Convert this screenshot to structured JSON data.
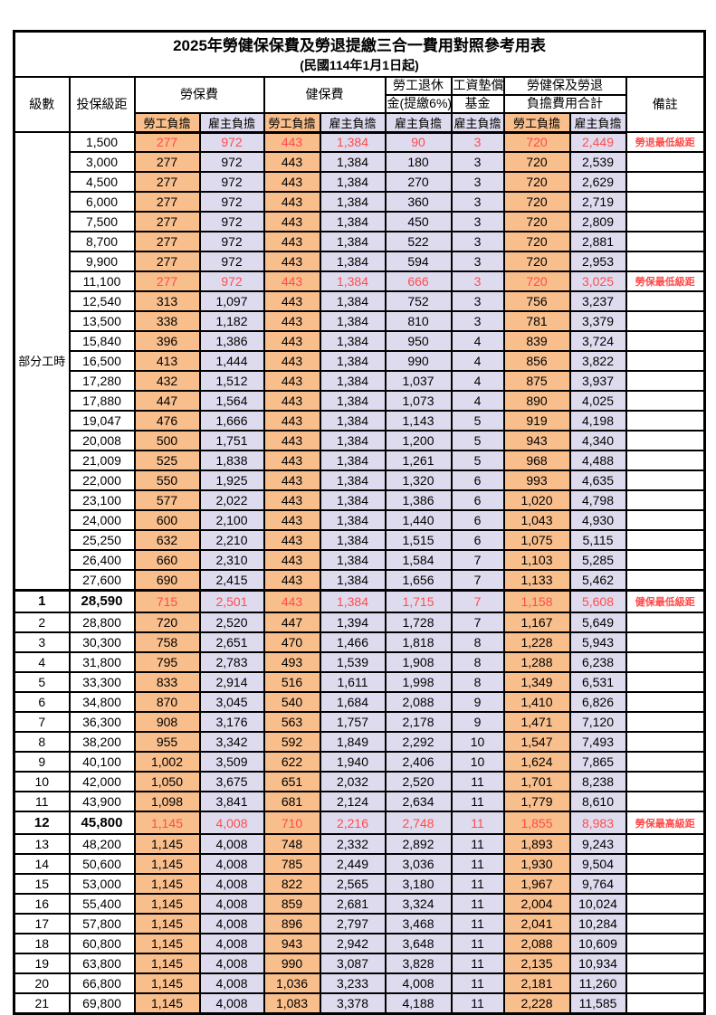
{
  "title": "2025年勞健保保費及勞退提繳三合一費用對照參考用表",
  "subtitle": "(民國114年1月1日起)",
  "header": {
    "level": "級數",
    "bracket": "投保級距",
    "labor_insurance": "勞保費",
    "health_insurance": "健保費",
    "pension_line1": "勞工退休",
    "pension_line2": "金(提繳6%)",
    "wage_fund_line1": "工資墊償",
    "wage_fund_line2": "基金",
    "total_line1": "勞健保及勞退",
    "total_line2": "負擔費用合計",
    "employee_share": "勞工負擔",
    "employer_share": "雇主負擔",
    "note": "備註"
  },
  "part_time_label": "部分工時",
  "part_time_span": 23,
  "colors": {
    "employee_column_bg": "#F8BE8C",
    "employer_column_bg": "#DFDBEE",
    "highlight_red": "#FF4C4C",
    "border": "#000000"
  },
  "rows": [
    {
      "level": "",
      "bracket": "1,500",
      "values": [
        "277",
        "972",
        "443",
        "1,384",
        "90",
        "3",
        "720",
        "2,449"
      ],
      "note": "勞退最低級距",
      "red": true,
      "bold": false,
      "section_start": false
    },
    {
      "level": "",
      "bracket": "3,000",
      "values": [
        "277",
        "972",
        "443",
        "1,384",
        "180",
        "3",
        "720",
        "2,539"
      ],
      "note": "",
      "red": false,
      "bold": false,
      "section_start": false
    },
    {
      "level": "",
      "bracket": "4,500",
      "values": [
        "277",
        "972",
        "443",
        "1,384",
        "270",
        "3",
        "720",
        "2,629"
      ],
      "note": "",
      "red": false,
      "bold": false,
      "section_start": false
    },
    {
      "level": "",
      "bracket": "6,000",
      "values": [
        "277",
        "972",
        "443",
        "1,384",
        "360",
        "3",
        "720",
        "2,719"
      ],
      "note": "",
      "red": false,
      "bold": false,
      "section_start": false
    },
    {
      "level": "",
      "bracket": "7,500",
      "values": [
        "277",
        "972",
        "443",
        "1,384",
        "450",
        "3",
        "720",
        "2,809"
      ],
      "note": "",
      "red": false,
      "bold": false,
      "section_start": false
    },
    {
      "level": "",
      "bracket": "8,700",
      "values": [
        "277",
        "972",
        "443",
        "1,384",
        "522",
        "3",
        "720",
        "2,881"
      ],
      "note": "",
      "red": false,
      "bold": false,
      "section_start": false
    },
    {
      "level": "",
      "bracket": "9,900",
      "values": [
        "277",
        "972",
        "443",
        "1,384",
        "594",
        "3",
        "720",
        "2,953"
      ],
      "note": "",
      "red": false,
      "bold": false,
      "section_start": false
    },
    {
      "level": "",
      "bracket": "11,100",
      "values": [
        "277",
        "972",
        "443",
        "1,384",
        "666",
        "3",
        "720",
        "3,025"
      ],
      "note": "勞保最低級距",
      "red": true,
      "bold": false,
      "section_start": false
    },
    {
      "level": "",
      "bracket": "12,540",
      "values": [
        "313",
        "1,097",
        "443",
        "1,384",
        "752",
        "3",
        "756",
        "3,237"
      ],
      "note": "",
      "red": false,
      "bold": false,
      "section_start": false
    },
    {
      "level": "",
      "bracket": "13,500",
      "values": [
        "338",
        "1,182",
        "443",
        "1,384",
        "810",
        "3",
        "781",
        "3,379"
      ],
      "note": "",
      "red": false,
      "bold": false,
      "section_start": false
    },
    {
      "level": "",
      "bracket": "15,840",
      "values": [
        "396",
        "1,386",
        "443",
        "1,384",
        "950",
        "4",
        "839",
        "3,724"
      ],
      "note": "",
      "red": false,
      "bold": false,
      "section_start": false
    },
    {
      "level": "",
      "bracket": "16,500",
      "values": [
        "413",
        "1,444",
        "443",
        "1,384",
        "990",
        "4",
        "856",
        "3,822"
      ],
      "note": "",
      "red": false,
      "bold": false,
      "section_start": false
    },
    {
      "level": "",
      "bracket": "17,280",
      "values": [
        "432",
        "1,512",
        "443",
        "1,384",
        "1,037",
        "4",
        "875",
        "3,937"
      ],
      "note": "",
      "red": false,
      "bold": false,
      "section_start": false
    },
    {
      "level": "",
      "bracket": "17,880",
      "values": [
        "447",
        "1,564",
        "443",
        "1,384",
        "1,073",
        "4",
        "890",
        "4,025"
      ],
      "note": "",
      "red": false,
      "bold": false,
      "section_start": false
    },
    {
      "level": "",
      "bracket": "19,047",
      "values": [
        "476",
        "1,666",
        "443",
        "1,384",
        "1,143",
        "5",
        "919",
        "4,198"
      ],
      "note": "",
      "red": false,
      "bold": false,
      "section_start": false
    },
    {
      "level": "",
      "bracket": "20,008",
      "values": [
        "500",
        "1,751",
        "443",
        "1,384",
        "1,200",
        "5",
        "943",
        "4,340"
      ],
      "note": "",
      "red": false,
      "bold": false,
      "section_start": false
    },
    {
      "level": "",
      "bracket": "21,009",
      "values": [
        "525",
        "1,838",
        "443",
        "1,384",
        "1,261",
        "5",
        "968",
        "4,488"
      ],
      "note": "",
      "red": false,
      "bold": false,
      "section_start": false
    },
    {
      "level": "",
      "bracket": "22,000",
      "values": [
        "550",
        "1,925",
        "443",
        "1,384",
        "1,320",
        "6",
        "993",
        "4,635"
      ],
      "note": "",
      "red": false,
      "bold": false,
      "section_start": false
    },
    {
      "level": "",
      "bracket": "23,100",
      "values": [
        "577",
        "2,022",
        "443",
        "1,384",
        "1,386",
        "6",
        "1,020",
        "4,798"
      ],
      "note": "",
      "red": false,
      "bold": false,
      "section_start": false
    },
    {
      "level": "",
      "bracket": "24,000",
      "values": [
        "600",
        "2,100",
        "443",
        "1,384",
        "1,440",
        "6",
        "1,043",
        "4,930"
      ],
      "note": "",
      "red": false,
      "bold": false,
      "section_start": false
    },
    {
      "level": "",
      "bracket": "25,250",
      "values": [
        "632",
        "2,210",
        "443",
        "1,384",
        "1,515",
        "6",
        "1,075",
        "5,115"
      ],
      "note": "",
      "red": false,
      "bold": false,
      "section_start": false
    },
    {
      "level": "",
      "bracket": "26,400",
      "values": [
        "660",
        "2,310",
        "443",
        "1,384",
        "1,584",
        "7",
        "1,103",
        "5,285"
      ],
      "note": "",
      "red": false,
      "bold": false,
      "section_start": false
    },
    {
      "level": "",
      "bracket": "27,600",
      "values": [
        "690",
        "2,415",
        "443",
        "1,384",
        "1,656",
        "7",
        "1,133",
        "5,462"
      ],
      "note": "",
      "red": false,
      "bold": false,
      "section_start": false
    },
    {
      "level": "1",
      "bracket": "28,590",
      "values": [
        "715",
        "2,501",
        "443",
        "1,384",
        "1,715",
        "7",
        "1,158",
        "5,608"
      ],
      "note": "健保最低級距",
      "red": true,
      "bold": true,
      "section_start": true
    },
    {
      "level": "2",
      "bracket": "28,800",
      "values": [
        "720",
        "2,520",
        "447",
        "1,394",
        "1,728",
        "7",
        "1,167",
        "5,649"
      ],
      "note": "",
      "red": false,
      "bold": false,
      "section_start": false
    },
    {
      "level": "3",
      "bracket": "30,300",
      "values": [
        "758",
        "2,651",
        "470",
        "1,466",
        "1,818",
        "8",
        "1,228",
        "5,943"
      ],
      "note": "",
      "red": false,
      "bold": false,
      "section_start": false
    },
    {
      "level": "4",
      "bracket": "31,800",
      "values": [
        "795",
        "2,783",
        "493",
        "1,539",
        "1,908",
        "8",
        "1,288",
        "6,238"
      ],
      "note": "",
      "red": false,
      "bold": false,
      "section_start": false
    },
    {
      "level": "5",
      "bracket": "33,300",
      "values": [
        "833",
        "2,914",
        "516",
        "1,611",
        "1,998",
        "8",
        "1,349",
        "6,531"
      ],
      "note": "",
      "red": false,
      "bold": false,
      "section_start": false
    },
    {
      "level": "6",
      "bracket": "34,800",
      "values": [
        "870",
        "3,045",
        "540",
        "1,684",
        "2,088",
        "9",
        "1,410",
        "6,826"
      ],
      "note": "",
      "red": false,
      "bold": false,
      "section_start": false
    },
    {
      "level": "7",
      "bracket": "36,300",
      "values": [
        "908",
        "3,176",
        "563",
        "1,757",
        "2,178",
        "9",
        "1,471",
        "7,120"
      ],
      "note": "",
      "red": false,
      "bold": false,
      "section_start": false
    },
    {
      "level": "8",
      "bracket": "38,200",
      "values": [
        "955",
        "3,342",
        "592",
        "1,849",
        "2,292",
        "10",
        "1,547",
        "7,493"
      ],
      "note": "",
      "red": false,
      "bold": false,
      "section_start": false
    },
    {
      "level": "9",
      "bracket": "40,100",
      "values": [
        "1,002",
        "3,509",
        "622",
        "1,940",
        "2,406",
        "10",
        "1,624",
        "7,865"
      ],
      "note": "",
      "red": false,
      "bold": false,
      "section_start": false
    },
    {
      "level": "10",
      "bracket": "42,000",
      "values": [
        "1,050",
        "3,675",
        "651",
        "2,032",
        "2,520",
        "11",
        "1,701",
        "8,238"
      ],
      "note": "",
      "red": false,
      "bold": false,
      "section_start": false
    },
    {
      "level": "11",
      "bracket": "43,900",
      "values": [
        "1,098",
        "3,841",
        "681",
        "2,124",
        "2,634",
        "11",
        "1,779",
        "8,610"
      ],
      "note": "",
      "red": false,
      "bold": false,
      "section_start": false
    },
    {
      "level": "12",
      "bracket": "45,800",
      "values": [
        "1,145",
        "4,008",
        "710",
        "2,216",
        "2,748",
        "11",
        "1,855",
        "8,983"
      ],
      "note": "勞保最高級距",
      "red": true,
      "bold": true,
      "section_start": false
    },
    {
      "level": "13",
      "bracket": "48,200",
      "values": [
        "1,145",
        "4,008",
        "748",
        "2,332",
        "2,892",
        "11",
        "1,893",
        "9,243"
      ],
      "note": "",
      "red": false,
      "bold": false,
      "section_start": false
    },
    {
      "level": "14",
      "bracket": "50,600",
      "values": [
        "1,145",
        "4,008",
        "785",
        "2,449",
        "3,036",
        "11",
        "1,930",
        "9,504"
      ],
      "note": "",
      "red": false,
      "bold": false,
      "section_start": false
    },
    {
      "level": "15",
      "bracket": "53,000",
      "values": [
        "1,145",
        "4,008",
        "822",
        "2,565",
        "3,180",
        "11",
        "1,967",
        "9,764"
      ],
      "note": "",
      "red": false,
      "bold": false,
      "section_start": false
    },
    {
      "level": "16",
      "bracket": "55,400",
      "values": [
        "1,145",
        "4,008",
        "859",
        "2,681",
        "3,324",
        "11",
        "2,004",
        "10,024"
      ],
      "note": "",
      "red": false,
      "bold": false,
      "section_start": false
    },
    {
      "level": "17",
      "bracket": "57,800",
      "values": [
        "1,145",
        "4,008",
        "896",
        "2,797",
        "3,468",
        "11",
        "2,041",
        "10,284"
      ],
      "note": "",
      "red": false,
      "bold": false,
      "section_start": false
    },
    {
      "level": "18",
      "bracket": "60,800",
      "values": [
        "1,145",
        "4,008",
        "943",
        "2,942",
        "3,648",
        "11",
        "2,088",
        "10,609"
      ],
      "note": "",
      "red": false,
      "bold": false,
      "section_start": false
    },
    {
      "level": "19",
      "bracket": "63,800",
      "values": [
        "1,145",
        "4,008",
        "990",
        "3,087",
        "3,828",
        "11",
        "2,135",
        "10,934"
      ],
      "note": "",
      "red": false,
      "bold": false,
      "section_start": false
    },
    {
      "level": "20",
      "bracket": "66,800",
      "values": [
        "1,145",
        "4,008",
        "1,036",
        "3,233",
        "4,008",
        "11",
        "2,181",
        "11,260"
      ],
      "note": "",
      "red": false,
      "bold": false,
      "section_start": false
    },
    {
      "level": "21",
      "bracket": "69,800",
      "values": [
        "1,145",
        "4,008",
        "1,083",
        "3,378",
        "4,188",
        "11",
        "2,228",
        "11,585"
      ],
      "note": "",
      "red": false,
      "bold": false,
      "section_start": false
    }
  ]
}
